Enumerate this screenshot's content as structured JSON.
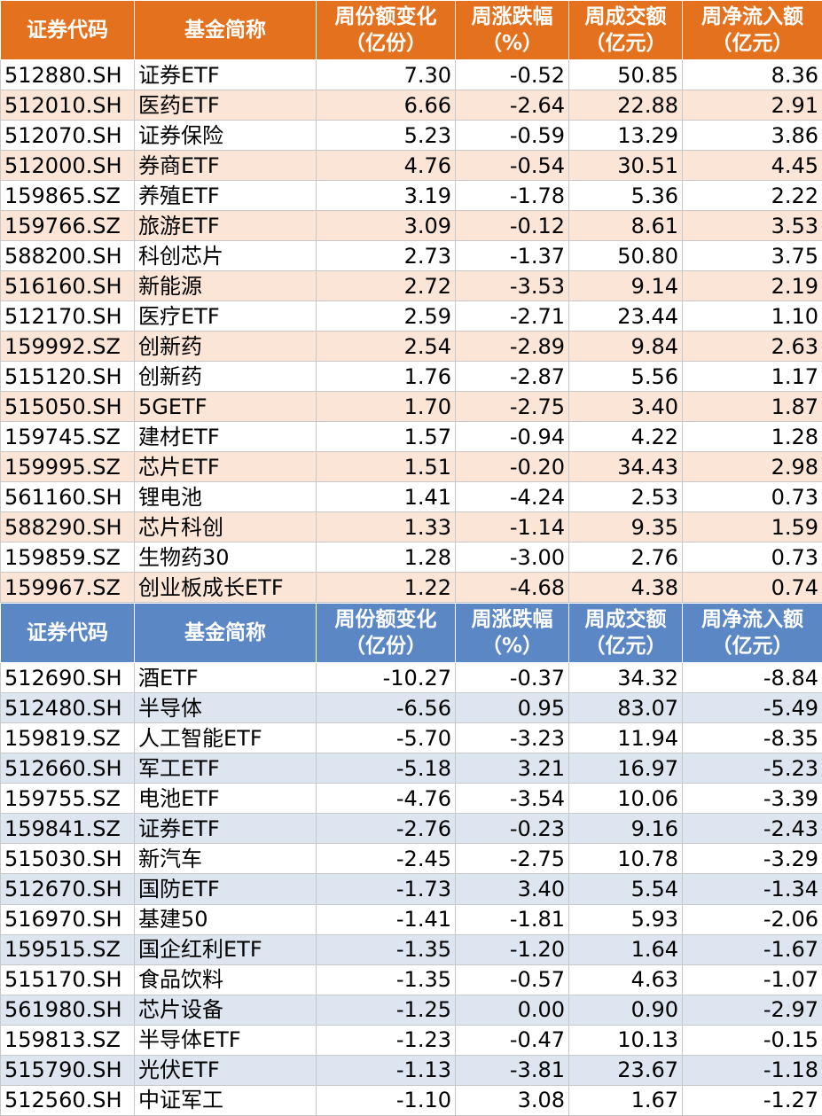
{
  "headers": [
    [
      "证券代码"
    ],
    [
      "基金简称"
    ],
    [
      "周份额变化",
      "（亿份）"
    ],
    [
      "周涨跌幅",
      "（%）"
    ],
    [
      "周成交额",
      "（亿元）"
    ],
    [
      "周净流入额",
      "（亿元）"
    ]
  ],
  "inflow_table": [
    [
      "512880.SH",
      "证券ETF",
      "7.30",
      "-0.52",
      "50.85",
      "8.36"
    ],
    [
      "512010.SH",
      "医药ETF",
      "6.66",
      "-2.64",
      "22.88",
      "2.91"
    ],
    [
      "512070.SH",
      "证券保险",
      "5.23",
      "-0.59",
      "13.29",
      "3.86"
    ],
    [
      "512000.SH",
      "券商ETF",
      "4.76",
      "-0.54",
      "30.51",
      "4.45"
    ],
    [
      "159865.SZ",
      "养殖ETF",
      "3.19",
      "-1.78",
      "5.36",
      "2.22"
    ],
    [
      "159766.SZ",
      "旅游ETF",
      "3.09",
      "-0.12",
      "8.61",
      "3.53"
    ],
    [
      "588200.SH",
      "科创芯片",
      "2.73",
      "-1.37",
      "50.80",
      "3.75"
    ],
    [
      "516160.SH",
      "新能源",
      "2.72",
      "-3.53",
      "9.14",
      "2.19"
    ],
    [
      "512170.SH",
      "医疗ETF",
      "2.59",
      "-2.71",
      "23.44",
      "1.10"
    ],
    [
      "159992.SZ",
      "创新药",
      "2.54",
      "-2.89",
      "9.84",
      "2.63"
    ],
    [
      "515120.SH",
      "创新药",
      "1.76",
      "-2.87",
      "5.56",
      "1.17"
    ],
    [
      "515050.SH",
      "5GETF",
      "1.70",
      "-2.75",
      "3.40",
      "1.87"
    ],
    [
      "159745.SZ",
      "建材ETF",
      "1.57",
      "-0.94",
      "4.22",
      "1.28"
    ],
    [
      "159995.SZ",
      "芯片ETF",
      "1.51",
      "-0.20",
      "34.43",
      "2.98"
    ],
    [
      "561160.SH",
      "锂电池",
      "1.41",
      "-4.24",
      "2.53",
      "0.73"
    ],
    [
      "588290.SH",
      "芯片科创",
      "1.33",
      "-1.14",
      "9.35",
      "1.59"
    ],
    [
      "159859.SZ",
      "生物药30",
      "1.28",
      "-3.00",
      "2.76",
      "0.73"
    ],
    [
      "159967.SZ",
      "创业板成长ETF",
      "1.22",
      "-4.68",
      "4.38",
      "0.74"
    ]
  ],
  "outflow_table": [
    [
      "512690.SH",
      "酒ETF",
      "-10.27",
      "-0.37",
      "34.32",
      "-8.84"
    ],
    [
      "512480.SH",
      "半导体",
      "-6.56",
      "0.95",
      "83.07",
      "-5.49"
    ],
    [
      "159819.SZ",
      "人工智能ETF",
      "-5.70",
      "-3.23",
      "11.94",
      "-8.35"
    ],
    [
      "512660.SH",
      "军工ETF",
      "-5.18",
      "3.21",
      "16.97",
      "-5.23"
    ],
    [
      "159755.SZ",
      "电池ETF",
      "-4.76",
      "-3.54",
      "10.06",
      "-3.39"
    ],
    [
      "159841.SZ",
      "证券ETF",
      "-2.76",
      "-0.23",
      "9.16",
      "-2.43"
    ],
    [
      "515030.SH",
      "新汽车",
      "-2.45",
      "-2.75",
      "10.78",
      "-3.29"
    ],
    [
      "512670.SH",
      "国防ETF",
      "-1.73",
      "3.40",
      "5.54",
      "-1.34"
    ],
    [
      "516970.SH",
      "基建50",
      "-1.41",
      "-1.81",
      "5.93",
      "-2.06"
    ],
    [
      "159515.SZ",
      "国企红利ETF",
      "-1.35",
      "-1.20",
      "1.64",
      "-1.67"
    ],
    [
      "515170.SH",
      "食品饮料",
      "-1.35",
      "-0.57",
      "4.63",
      "-1.07"
    ],
    [
      "561980.SH",
      "芯片设备",
      "-1.25",
      "0.00",
      "0.90",
      "-2.97"
    ],
    [
      "159813.SZ",
      "半导体ETF",
      "-1.23",
      "-0.47",
      "10.13",
      "-0.15"
    ],
    [
      "515790.SH",
      "光伏ETF",
      "-1.13",
      "-3.81",
      "23.67",
      "-1.18"
    ],
    [
      "512560.SH",
      "中证军工",
      "-1.10",
      "3.08",
      "1.67",
      "-1.27"
    ]
  ],
  "colors": {
    "inflow_header": "#e4711d",
    "inflow_stripe": "#fbe5d6",
    "outflow_header": "#5b87c5",
    "outflow_stripe": "#dde5f1"
  }
}
